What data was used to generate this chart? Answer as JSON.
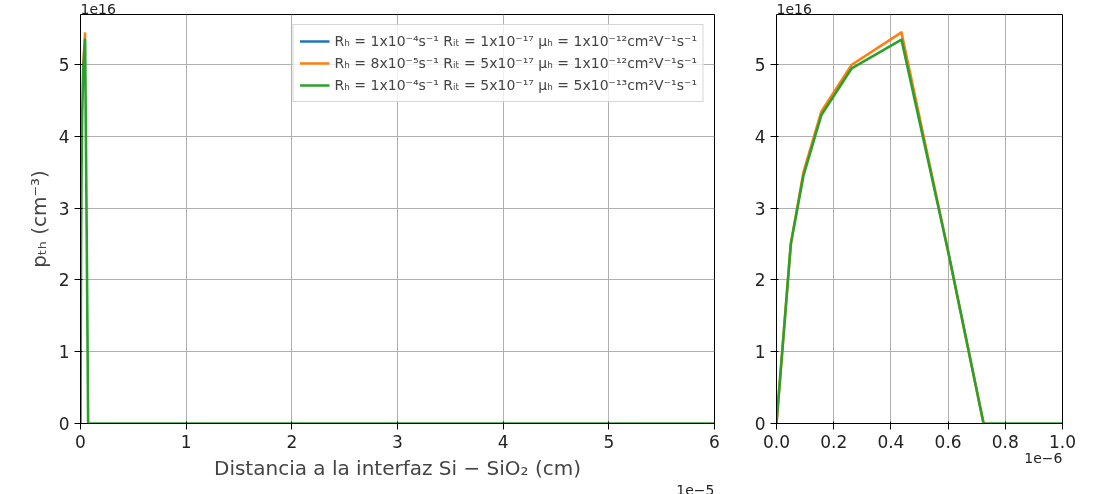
{
  "chart_data": [
    {
      "type": "line",
      "xlabel": "Distancia a la interfaz Si − SiO₂ (cm)",
      "ylabel": "pₜₕ (cm⁻³)",
      "x": [
        0,
        0.005,
        0.0094,
        0.0157,
        0.0263,
        0.0437,
        0.06,
        0.0724,
        0.1,
        6
      ],
      "series": [
        {
          "name": "Rₕ = 1x10⁻⁴s⁻¹ Rᵢₜ = 1x10⁻¹⁷ μₕ = 1x10⁻¹²cm²V⁻¹s⁻¹",
          "color": "#1f77b4",
          "values": [
            null,
            null,
            null,
            null,
            null,
            null,
            null,
            null,
            null,
            null
          ]
        },
        {
          "name": "Rₕ = 8x10⁻⁵s⁻¹ Rᵢₜ = 5x10⁻¹⁷ μₕ = 1x10⁻¹²cm²V⁻¹s⁻¹",
          "color": "#ff7f0e",
          "values": [
            null,
            null,
            null,
            null,
            5.0,
            5.45,
            null,
            null,
            null,
            null
          ]
        },
        {
          "name": "Rₕ = 1x10⁻⁴s⁻¹ Rᵢₜ = 5x10⁻¹⁷ μₕ = 5x10⁻¹³cm²V⁻¹s⁻¹",
          "color": "#2ca02c",
          "values": [
            0,
            2.5,
            3.45,
            4.3,
            4.95,
            5.35,
            2.4,
            0,
            0,
            0
          ]
        }
      ],
      "xlim": [
        0,
        6
      ],
      "xticks": [
        0,
        1,
        2,
        3,
        4,
        5,
        6
      ],
      "ylim": [
        0,
        5.7
      ],
      "yticks": [
        0,
        1,
        2,
        3,
        4,
        5
      ],
      "grid": true,
      "legend": "top right",
      "line_style": "solid",
      "marker": "none",
      "annotations": [
        "1e16",
        "1e−5"
      ]
    },
    {
      "type": "line",
      "x": [
        0,
        0.05,
        0.094,
        0.157,
        0.263,
        0.437,
        0.6,
        0.724,
        1.0
      ],
      "series": [
        {
          "color": "#ff7f0e",
          "values": [
            0,
            2.5,
            3.5,
            4.35,
            5.0,
            5.45,
            2.4,
            0,
            null
          ]
        },
        {
          "color": "#2ca02c",
          "values": [
            0,
            2.5,
            3.45,
            4.3,
            4.95,
            5.35,
            2.4,
            0,
            0
          ]
        }
      ],
      "xlim": [
        0,
        1.0
      ],
      "xticks": [
        {
          "value": 0,
          "label": "0.0"
        },
        0.2,
        0.4,
        0.6,
        0.8,
        {
          "value": 1.0,
          "label": "1.0"
        }
      ],
      "ylim": [
        0,
        5.7
      ],
      "yticks": [
        0,
        1,
        2,
        3,
        4,
        5
      ],
      "grid": true,
      "line_style": "solid",
      "marker": "none",
      "annotations": [
        "1e16",
        "1e−6"
      ]
    }
  ]
}
